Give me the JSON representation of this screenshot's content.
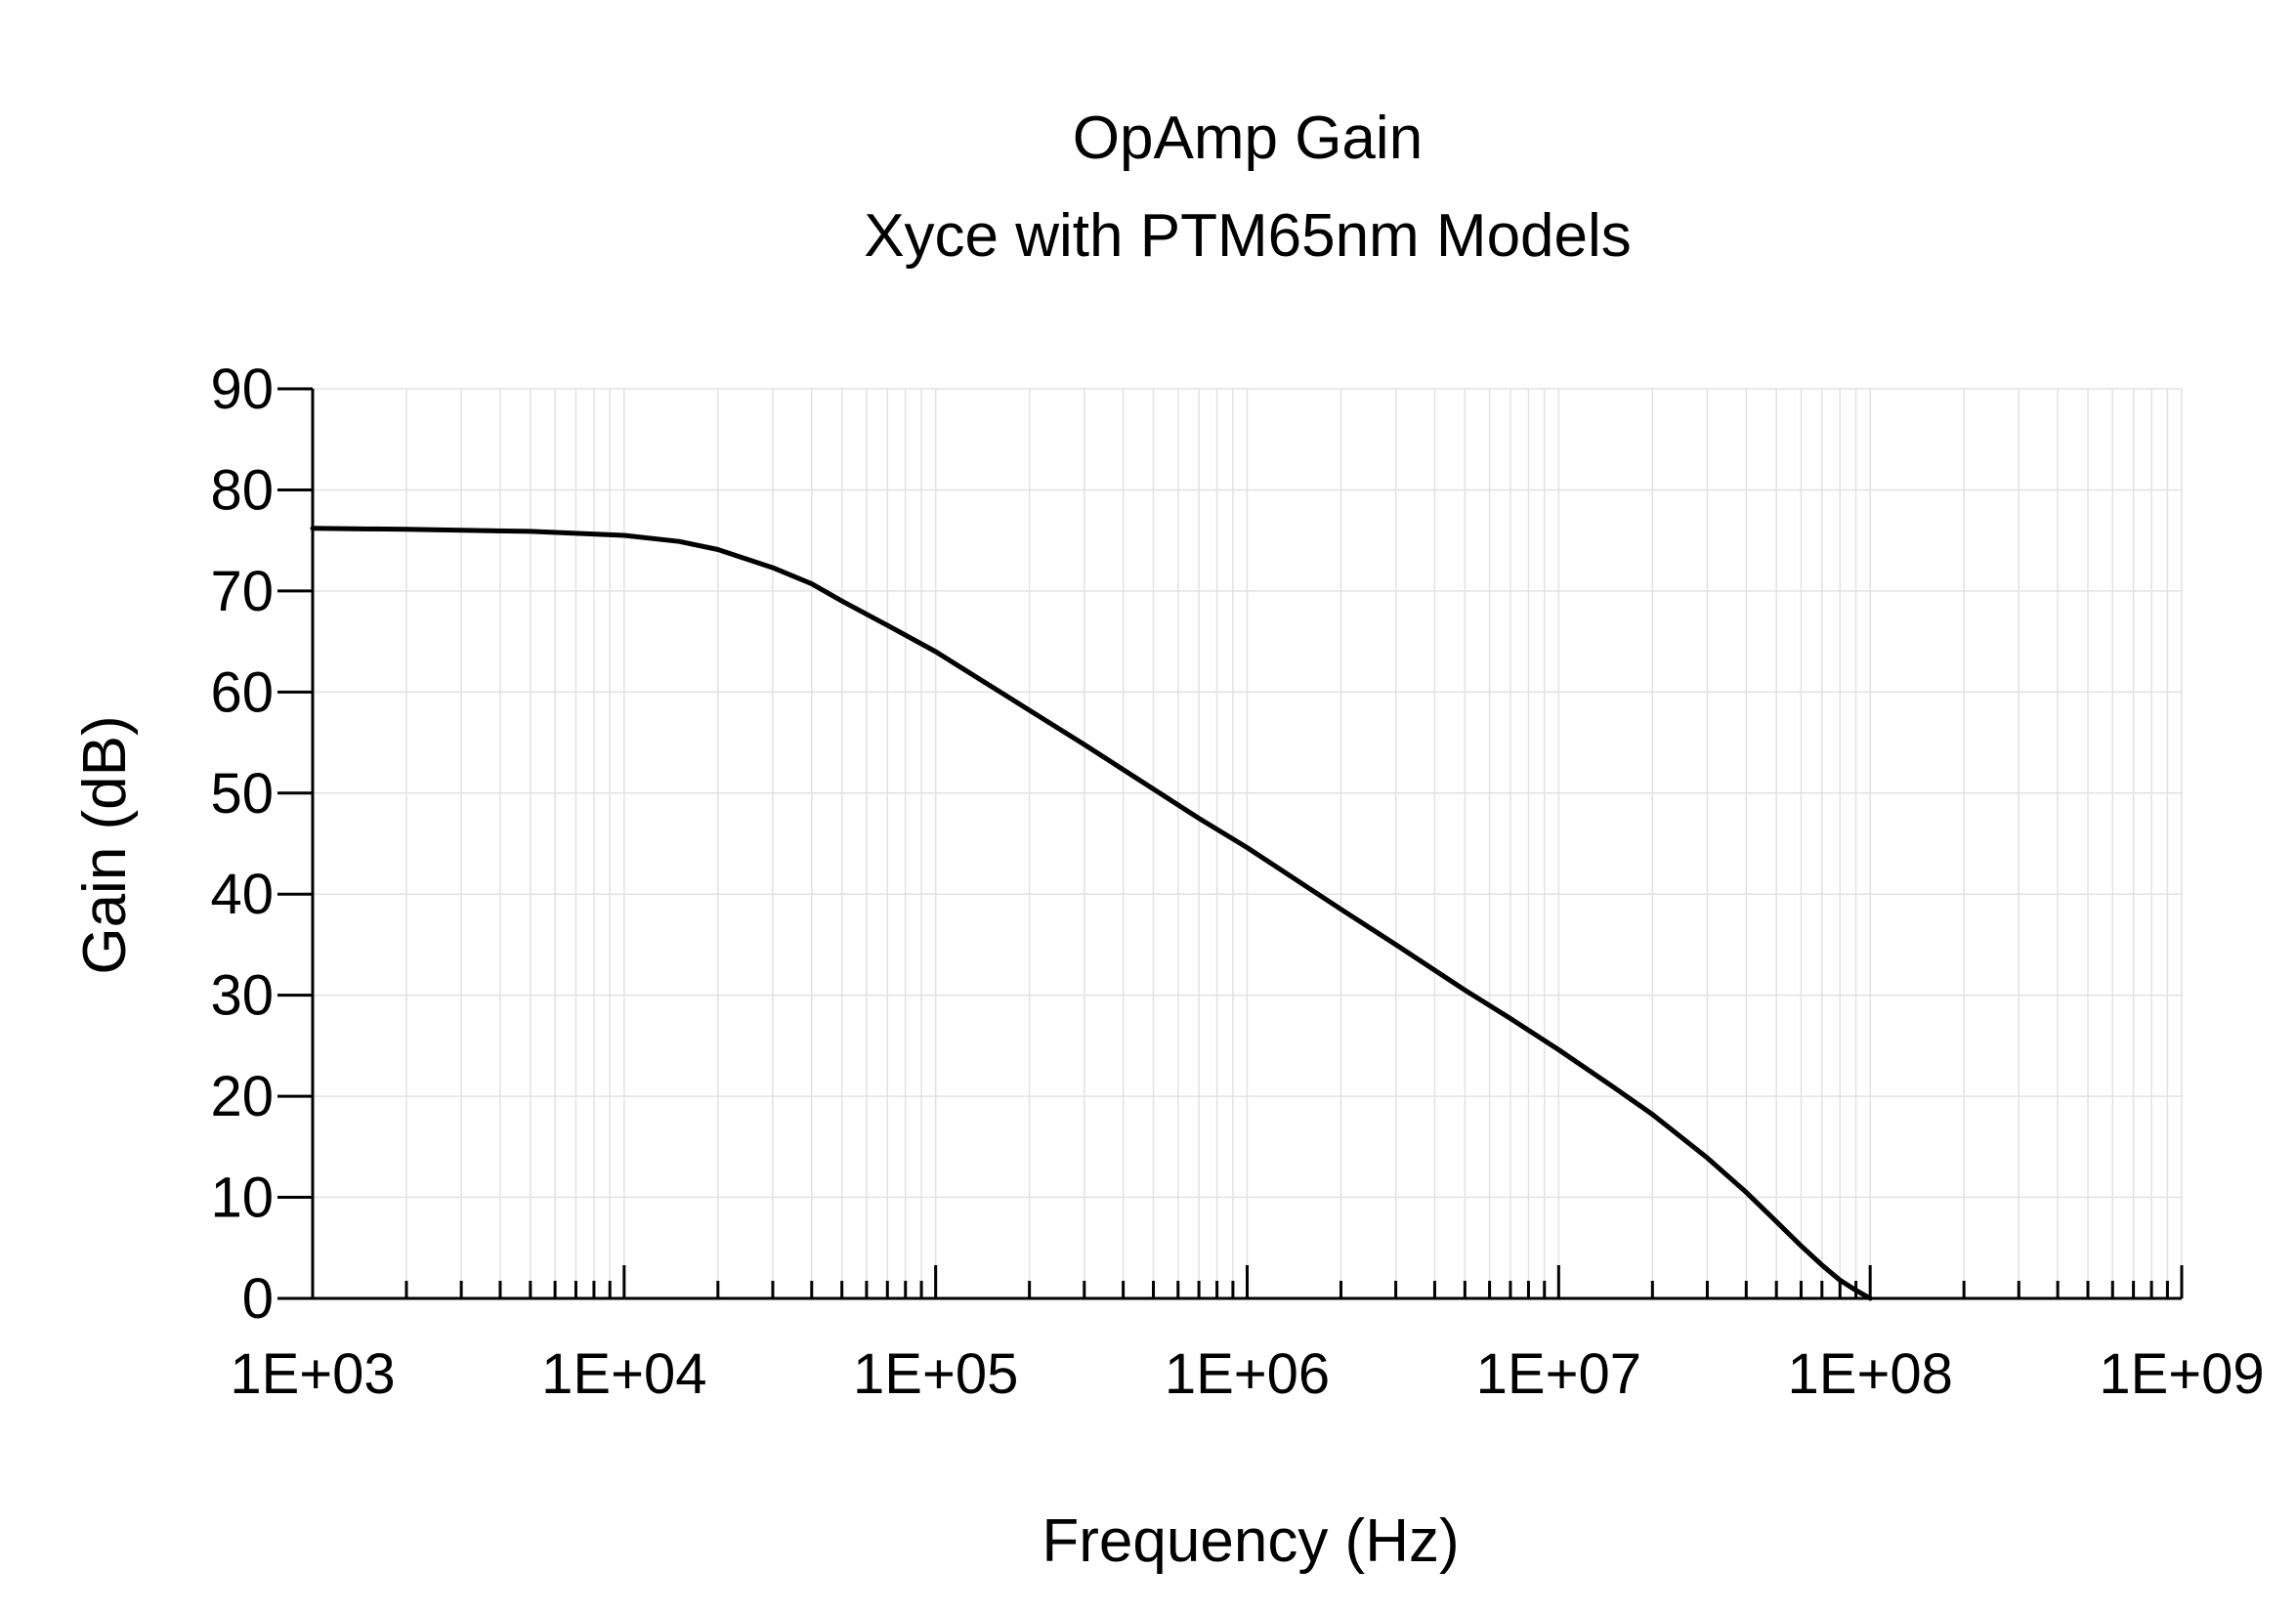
{
  "chart_data": {
    "type": "line",
    "title": "OpAmp Gain",
    "subtitle": "Xyce with PTM65nm Models",
    "xlabel": "Frequency (Hz)",
    "ylabel": "Gain (dB)",
    "xscale": "log",
    "xlim": [
      1000,
      1000000000
    ],
    "ylim": [
      0,
      90
    ],
    "grid": true,
    "x_ticks": [
      {
        "value": 1000,
        "label": "1E+03"
      },
      {
        "value": 10000,
        "label": "1E+04"
      },
      {
        "value": 100000,
        "label": "1E+05"
      },
      {
        "value": 1000000,
        "label": "1E+06"
      },
      {
        "value": 10000000,
        "label": "1E+07"
      },
      {
        "value": 100000000,
        "label": "1E+08"
      },
      {
        "value": 1000000000,
        "label": "1E+09"
      }
    ],
    "y_ticks": [
      {
        "value": 0,
        "label": "0"
      },
      {
        "value": 10,
        "label": "10"
      },
      {
        "value": 20,
        "label": "20"
      },
      {
        "value": 30,
        "label": "30"
      },
      {
        "value": 40,
        "label": "40"
      },
      {
        "value": 50,
        "label": "50"
      },
      {
        "value": 60,
        "label": "60"
      },
      {
        "value": 70,
        "label": "70"
      },
      {
        "value": 80,
        "label": "80"
      },
      {
        "value": 90,
        "label": "90"
      }
    ],
    "series": [
      {
        "name": "Gain",
        "color": "#000000",
        "x": [
          1000,
          2000,
          5000,
          10000,
          15000,
          20000,
          30000,
          40000,
          50000,
          70000,
          100000,
          150000,
          200000,
          300000,
          500000,
          700000,
          1000000,
          2000000,
          3000000,
          5000000,
          7000000,
          10000000,
          15000000,
          20000000,
          30000000,
          40000000,
          50000000,
          60000000,
          70000000,
          80000000,
          90000000,
          100000000
        ],
        "y": [
          76.2,
          76.1,
          75.9,
          75.5,
          74.9,
          74.1,
          72.3,
          70.7,
          69.0,
          66.6,
          64.0,
          60.6,
          58.2,
          54.8,
          50.4,
          47.5,
          44.6,
          38.5,
          35.0,
          30.5,
          27.7,
          24.6,
          20.9,
          18.2,
          13.9,
          10.5,
          7.6,
          5.2,
          3.3,
          1.8,
          0.8,
          0.0
        ]
      }
    ]
  }
}
